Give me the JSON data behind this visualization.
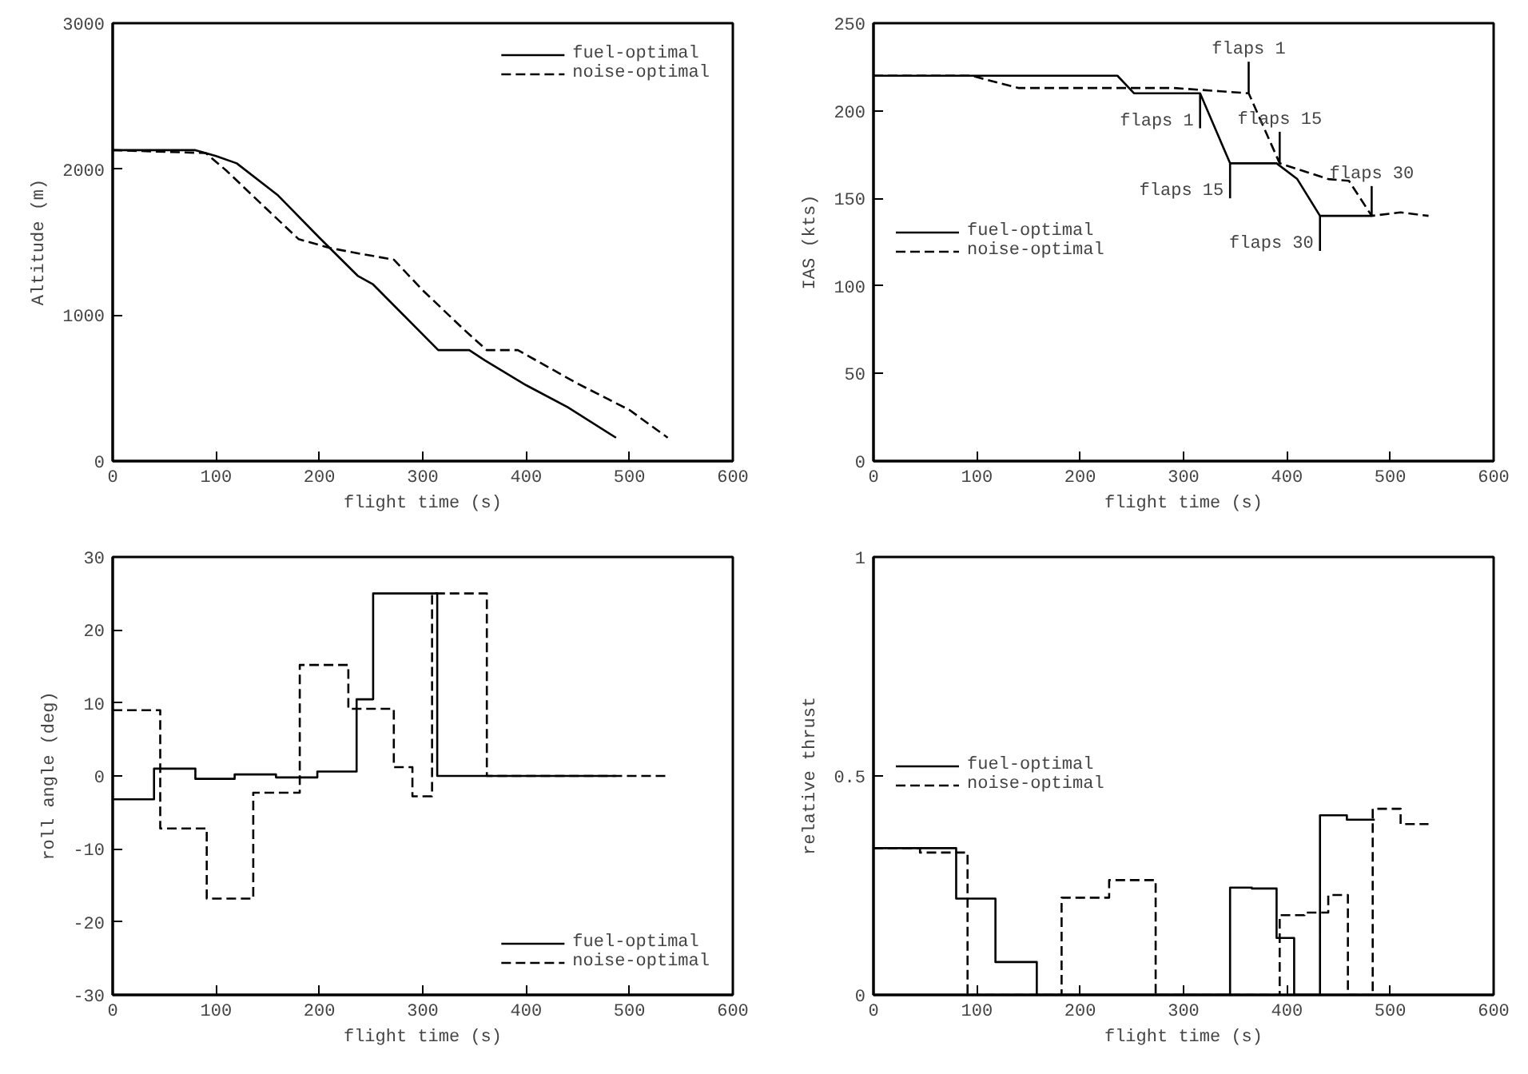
{
  "chart_data": [
    {
      "type": "line",
      "xlabel": "flight time (s)",
      "ylabel": "Altitude (m)",
      "xlim": [
        0,
        600
      ],
      "ylim": [
        0,
        3000
      ],
      "xticks": [
        0,
        100,
        200,
        300,
        400,
        500,
        600
      ],
      "yticks": [
        0,
        1000,
        2000,
        3000
      ],
      "grid": false,
      "legend": "top right",
      "series": [
        {
          "name": "fuel-optimal",
          "color": "#000000",
          "line_style": "solid",
          "x": [
            0,
            80,
            100,
            120,
            160,
            200,
            237,
            252,
            280,
            315,
            345,
            360,
            400,
            440,
            487
          ],
          "values": [
            2130,
            2130,
            2090,
            2040,
            1820,
            1530,
            1270,
            1210,
            1010,
            760,
            760,
            690,
            520,
            370,
            160
          ]
        },
        {
          "name": "noise-optimal",
          "color": "#000000",
          "line_style": "dashed",
          "x": [
            0,
            90,
            110,
            150,
            180,
            210,
            240,
            272,
            300,
            340,
            362,
            392,
            450,
            500,
            537
          ],
          "values": [
            2130,
            2110,
            1990,
            1720,
            1520,
            1460,
            1420,
            1380,
            1170,
            900,
            760,
            760,
            530,
            350,
            160
          ]
        }
      ]
    },
    {
      "type": "line",
      "xlabel": "flight time (s)",
      "ylabel": "IAS (kts)",
      "xlim": [
        0,
        600
      ],
      "ylim": [
        0,
        250
      ],
      "xticks": [
        0,
        100,
        200,
        300,
        400,
        500,
        600
      ],
      "yticks": [
        0,
        50,
        100,
        150,
        200,
        250
      ],
      "grid": false,
      "legend": "left",
      "series": [
        {
          "name": "fuel-optimal",
          "color": "#000000",
          "line_style": "solid",
          "x": [
            0,
            236,
            252,
            316,
            345,
            390,
            410,
            432,
            482
          ],
          "values": [
            220,
            220,
            210,
            210,
            170,
            170,
            161,
            140,
            140
          ]
        },
        {
          "name": "noise-optimal",
          "color": "#000000",
          "line_style": "dashed",
          "x": [
            0,
            95,
            140,
            290,
            363,
            393,
            440,
            460,
            482,
            510,
            537
          ],
          "values": [
            220,
            220,
            213,
            213,
            210,
            170,
            161,
            160,
            140,
            142,
            140
          ]
        },
        {
          "color": "#000000",
          "line_style": "solid",
          "x": [
            316,
            316
          ],
          "values": [
            210,
            190
          ]
        },
        {
          "color": "#000000",
          "line_style": "solid",
          "x": [
            345,
            345
          ],
          "values": [
            170,
            150
          ]
        },
        {
          "color": "#000000",
          "line_style": "solid",
          "x": [
            432,
            432
          ],
          "values": [
            140,
            120
          ]
        },
        {
          "color": "#000000",
          "line_style": "solid",
          "x": [
            363,
            363
          ],
          "values": [
            210,
            228
          ]
        },
        {
          "color": "#000000",
          "line_style": "solid",
          "x": [
            393,
            393
          ],
          "values": [
            170,
            188
          ]
        },
        {
          "color": "#000000",
          "line_style": "solid",
          "x": [
            482,
            482
          ],
          "values": [
            140,
            157
          ]
        }
      ],
      "annotations": [
        {
          "text": "flaps 1",
          "x": 316,
          "y": 190
        },
        {
          "text": "flaps 15",
          "x": 345,
          "y": 150
        },
        {
          "text": "flaps 30",
          "x": 432,
          "y": 120
        },
        {
          "text": "flaps 1",
          "x": 363,
          "y": 228
        },
        {
          "text": "flaps 15",
          "x": 393,
          "y": 188
        },
        {
          "text": "flaps 30",
          "x": 482,
          "y": 157
        }
      ]
    },
    {
      "type": "step",
      "xlabel": "flight time (s)",
      "ylabel": "roll angle (deg)",
      "xlim": [
        0,
        600
      ],
      "ylim": [
        -30,
        30
      ],
      "xticks": [
        0,
        100,
        200,
        300,
        400,
        500,
        600
      ],
      "yticks": [
        -30,
        -20,
        -10,
        0,
        10,
        20,
        30
      ],
      "grid": false,
      "legend": "bottom right",
      "series": [
        {
          "name": "fuel-optimal",
          "color": "#000000",
          "line_style": "solid",
          "x": [
            0,
            40,
            80,
            118,
            158,
            198,
            236,
            252,
            314,
            487
          ],
          "values": [
            -3.2,
            1,
            -0.4,
            0.2,
            -0.2,
            0.6,
            10.5,
            25,
            0,
            0
          ]
        },
        {
          "name": "noise-optimal",
          "color": "#000000",
          "line_style": "dashed",
          "x": [
            0,
            46,
            91,
            136,
            181,
            228,
            272,
            290,
            309,
            362,
            537
          ],
          "values": [
            9,
            -7.2,
            -16.8,
            -2.3,
            15.2,
            9.2,
            1.2,
            -2.8,
            25,
            0,
            0
          ]
        }
      ]
    },
    {
      "type": "step",
      "xlabel": "flight time (s)",
      "ylabel": "relative thrust",
      "xlim": [
        0,
        600
      ],
      "ylim": [
        0,
        1
      ],
      "xticks": [
        0,
        100,
        200,
        300,
        400,
        500,
        600
      ],
      "yticks": [
        0,
        0.5,
        1
      ],
      "grid": false,
      "legend": "left",
      "series": [
        {
          "name": "fuel-optimal",
          "color": "#000000",
          "line_style": "solid",
          "x": [
            0,
            80,
            118,
            158,
            345,
            366,
            390,
            407,
            432,
            458,
            485
          ],
          "values": [
            0.335,
            0.22,
            0.075,
            0,
            0.245,
            0.243,
            0.13,
            0,
            0.41,
            0.4,
            0.4
          ]
        },
        {
          "name": "noise-optimal",
          "color": "#000000",
          "line_style": "dashed",
          "x": [
            0,
            45,
            91,
            182,
            228,
            273,
            393,
            417,
            440,
            459,
            483,
            510,
            537
          ],
          "values": [
            0.335,
            0.325,
            0,
            0.222,
            0.262,
            0,
            0.182,
            0.188,
            0.228,
            0,
            0.425,
            0.39,
            0.39
          ]
        }
      ]
    }
  ]
}
